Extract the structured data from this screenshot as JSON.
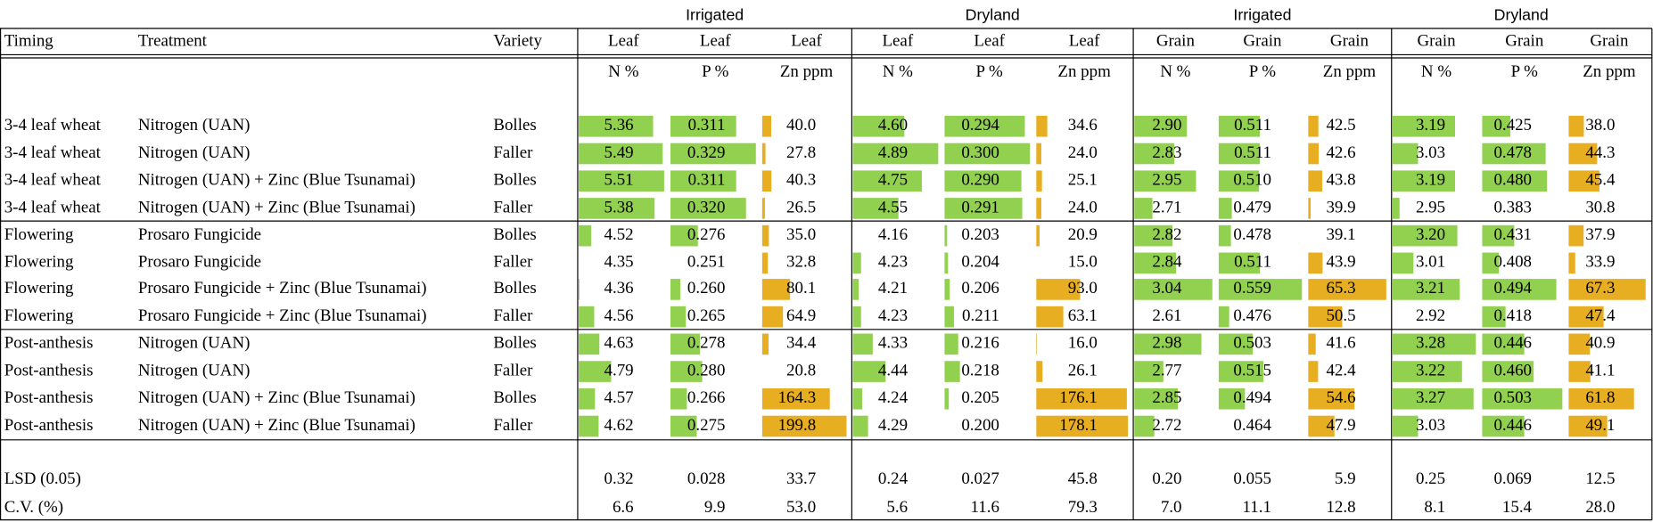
{
  "group_headers": [
    "Irrigated",
    "Dryland",
    "Irrigated",
    "Dryland"
  ],
  "columns": {
    "timing": "Timing",
    "treatment": "Treatment",
    "variety": "Variety",
    "data": [
      {
        "tissue": "Leaf",
        "unit": "N %",
        "bar_color": "#92d050"
      },
      {
        "tissue": "Leaf",
        "unit": "P %",
        "bar_color": "#92d050"
      },
      {
        "tissue": "Leaf",
        "unit": "Zn ppm",
        "bar_color": "#e8ae22"
      },
      {
        "tissue": "Leaf",
        "unit": "N %",
        "bar_color": "#92d050"
      },
      {
        "tissue": "Leaf",
        "unit": "P %",
        "bar_color": "#92d050"
      },
      {
        "tissue": "Leaf",
        "unit": "Zn ppm",
        "bar_color": "#e8ae22"
      },
      {
        "tissue": "Grain",
        "unit": "N %",
        "bar_color": "#92d050"
      },
      {
        "tissue": "Grain",
        "unit": "P %",
        "bar_color": "#92d050"
      },
      {
        "tissue": "Grain",
        "unit": "Zn ppm",
        "bar_color": "#e8ae22"
      },
      {
        "tissue": "Grain",
        "unit": "N %",
        "bar_color": "#92d050"
      },
      {
        "tissue": "Grain",
        "unit": "P %",
        "bar_color": "#92d050"
      },
      {
        "tissue": "Grain",
        "unit": "Zn ppm",
        "bar_color": "#e8ae22"
      }
    ]
  },
  "rows": [
    {
      "timing": "3-4 leaf wheat",
      "treatment": "Nitrogen (UAN)",
      "variety": "Bolles",
      "values": [
        "5.36",
        "0.311",
        "40.0",
        "4.60",
        "0.294",
        "34.6",
        "2.90",
        "0.511",
        "42.5",
        "3.19",
        "0.425",
        "38.0"
      ]
    },
    {
      "timing": "3-4 leaf wheat",
      "treatment": "Nitrogen (UAN)",
      "variety": "Faller",
      "values": [
        "5.49",
        "0.329",
        "27.8",
        "4.89",
        "0.300",
        "24.0",
        "2.83",
        "0.511",
        "42.6",
        "3.03",
        "0.478",
        "44.3"
      ]
    },
    {
      "timing": "3-4 leaf wheat",
      "treatment": "Nitrogen (UAN) + Zinc (Blue Tsunamai)",
      "variety": "Bolles",
      "values": [
        "5.51",
        "0.311",
        "40.3",
        "4.75",
        "0.290",
        "25.1",
        "2.95",
        "0.510",
        "43.8",
        "3.19",
        "0.480",
        "45.4"
      ]
    },
    {
      "timing": "3-4 leaf wheat",
      "treatment": "Nitrogen (UAN) + Zinc (Blue Tsunamai)",
      "variety": "Faller",
      "values": [
        "5.38",
        "0.320",
        "26.5",
        "4.55",
        "0.291",
        "24.0",
        "2.71",
        "0.479",
        "39.9",
        "2.95",
        "0.383",
        "30.8"
      ]
    },
    {
      "timing": "Flowering",
      "treatment": "Prosaro Fungicide",
      "variety": "Bolles",
      "values": [
        "4.52",
        "0.276",
        "35.0",
        "4.16",
        "0.203",
        "20.9",
        "2.82",
        "0.478",
        "39.1",
        "3.20",
        "0.431",
        "37.9"
      ]
    },
    {
      "timing": "Flowering",
      "treatment": "Prosaro Fungicide",
      "variety": "Faller",
      "values": [
        "4.35",
        "0.251",
        "32.8",
        "4.23",
        "0.204",
        "15.0",
        "2.84",
        "0.511",
        "43.9",
        "3.01",
        "0.408",
        "33.9"
      ]
    },
    {
      "timing": "Flowering",
      "treatment": "Prosaro Fungicide + Zinc (Blue Tsunamai)",
      "variety": "Bolles",
      "values": [
        "4.36",
        "0.260",
        "80.1",
        "4.21",
        "0.206",
        "93.0",
        "3.04",
        "0.559",
        "65.3",
        "3.21",
        "0.494",
        "67.3"
      ]
    },
    {
      "timing": "Flowering",
      "treatment": "Prosaro Fungicide + Zinc (Blue Tsunamai)",
      "variety": "Faller",
      "values": [
        "4.56",
        "0.265",
        "64.9",
        "4.23",
        "0.211",
        "63.1",
        "2.61",
        "0.476",
        "50.5",
        "2.92",
        "0.418",
        "47.4"
      ]
    },
    {
      "timing": "Post-anthesis",
      "treatment": "Nitrogen (UAN)",
      "variety": "Bolles",
      "values": [
        "4.63",
        "0.278",
        "34.4",
        "4.33",
        "0.216",
        "16.0",
        "2.98",
        "0.503",
        "41.6",
        "3.28",
        "0.446",
        "40.9"
      ]
    },
    {
      "timing": "Post-anthesis",
      "treatment": "Nitrogen (UAN)",
      "variety": "Faller",
      "values": [
        "4.79",
        "0.280",
        "20.8",
        "4.44",
        "0.218",
        "26.1",
        "2.77",
        "0.515",
        "42.4",
        "3.22",
        "0.460",
        "41.1"
      ]
    },
    {
      "timing": "Post-anthesis",
      "treatment": "Nitrogen (UAN) + Zinc (Blue Tsunamai)",
      "variety": "Bolles",
      "values": [
        "4.57",
        "0.266",
        "164.3",
        "4.24",
        "0.205",
        "176.1",
        "2.85",
        "0.494",
        "54.6",
        "3.27",
        "0.503",
        "61.8"
      ]
    },
    {
      "timing": "Post-anthesis",
      "treatment": "Nitrogen (UAN) + Zinc (Blue Tsunamai)",
      "variety": "Faller",
      "values": [
        "4.62",
        "0.275",
        "199.8",
        "4.29",
        "0.200",
        "178.1",
        "2.72",
        "0.464",
        "47.9",
        "3.03",
        "0.446",
        "49.1"
      ]
    }
  ],
  "stats": [
    {
      "label": "LSD (0.05)",
      "values": [
        "0.32",
        "0.028",
        "33.7",
        "0.24",
        "0.027",
        "45.8",
        "0.20",
        "0.055",
        "5.9",
        "0.25",
        "0.069",
        "12.5"
      ]
    },
    {
      "label": "C.V. (%)",
      "values": [
        "6.6",
        "9.9",
        "53.0",
        "5.6",
        "11.6",
        "79.3",
        "7.0",
        "11.1",
        "12.8",
        "8.1",
        "15.4",
        "28.0"
      ]
    }
  ]
}
